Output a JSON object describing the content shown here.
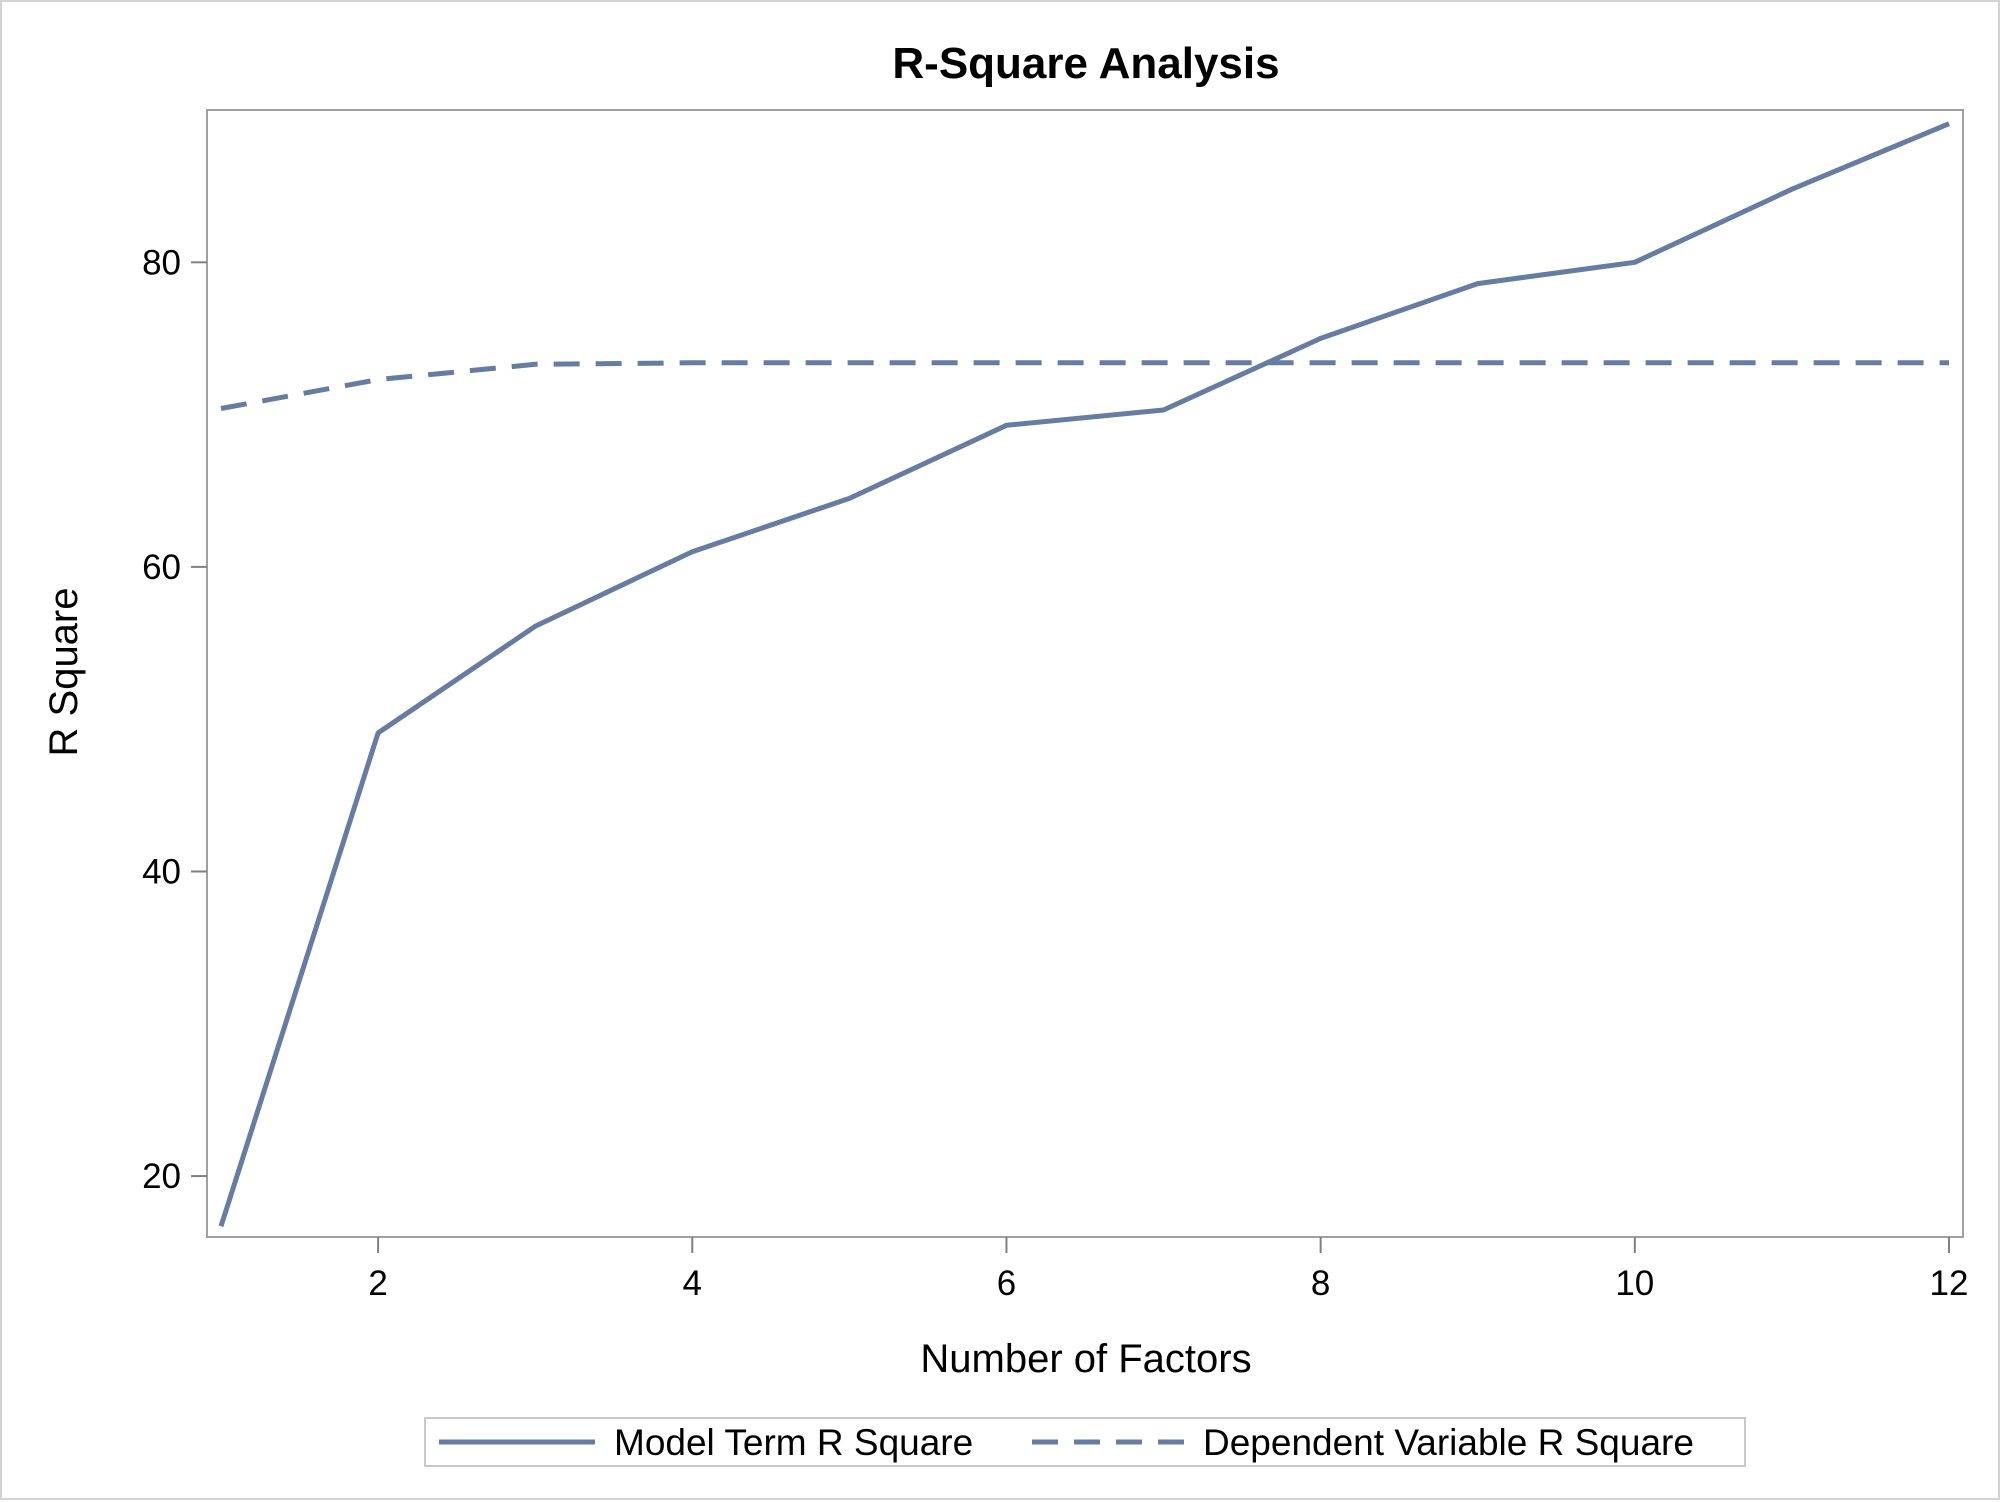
{
  "chart_data": {
    "type": "line",
    "title": "R-Square Analysis",
    "xlabel": "Number of Factors",
    "ylabel": "R Square",
    "xlim": [
      1,
      12
    ],
    "ylim": [
      16,
      90
    ],
    "xticks": [
      2,
      4,
      6,
      8,
      10,
      12
    ],
    "yticks": [
      20,
      40,
      60,
      80
    ],
    "grid": false,
    "legend_position": "bottom",
    "x": [
      1,
      2,
      3,
      4,
      5,
      6,
      7,
      8,
      9,
      10,
      11,
      12
    ],
    "series": [
      {
        "name": "Model Term R Square",
        "style": "solid",
        "color": "#667ca0",
        "values": [
          16.7,
          49.1,
          56.1,
          61.0,
          64.5,
          69.3,
          70.3,
          75.0,
          78.6,
          80.0,
          84.8,
          89.1
        ]
      },
      {
        "name": "Dependent Variable R Square",
        "style": "dashed",
        "color": "#667ca0",
        "values": [
          70.4,
          72.3,
          73.3,
          73.4,
          73.4,
          73.4,
          73.4,
          73.4,
          73.4,
          73.4,
          73.4,
          73.4
        ]
      }
    ]
  }
}
